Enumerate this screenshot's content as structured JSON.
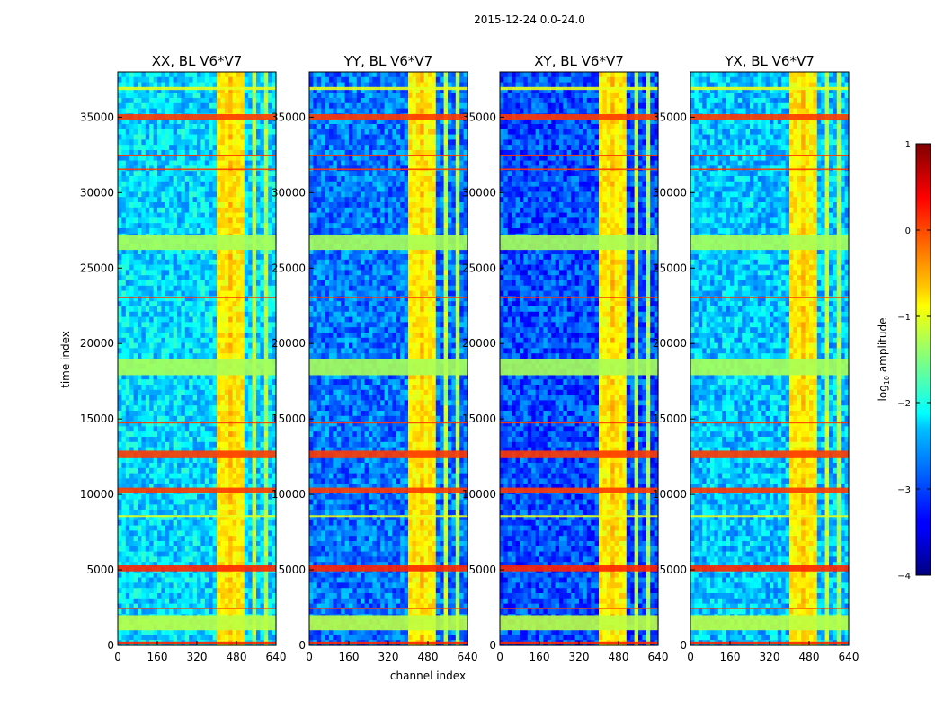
{
  "figure": {
    "suptitle": "2015-12-24 0.0-24.0",
    "xlabel": "channel index",
    "ylabel": "time index"
  },
  "colorbar": {
    "label_main": "log",
    "label_sub": "10",
    "label_tail": " amplitude",
    "range": [
      -4,
      1
    ],
    "ticks": [
      1,
      0,
      -1,
      -2,
      -3,
      -4
    ],
    "tick_labels": [
      "1",
      "0",
      "−1",
      "−2",
      "−3",
      "−4"
    ],
    "colormap": "jet"
  },
  "chart_data": {
    "type": "heatmap",
    "xlim": [
      0,
      640
    ],
    "ylim": [
      0,
      38000
    ],
    "xticks": [
      0,
      160,
      320,
      480,
      640
    ],
    "yticks": [
      0,
      5000,
      10000,
      15000,
      20000,
      25000,
      30000,
      35000
    ],
    "panels": [
      {
        "title": "XX, BL V6*V7",
        "polarization": "XX",
        "background_level": -2.3
      },
      {
        "title": "YY, BL V6*V7",
        "polarization": "YY",
        "background_level": -2.8
      },
      {
        "title": "XY, BL V6*V7",
        "polarization": "XY",
        "background_level": -3.0
      },
      {
        "title": "YX, BL V6*V7",
        "polarization": "YX",
        "background_level": -2.4
      }
    ],
    "bright_channel_bands": [
      {
        "from": 405,
        "to": 440,
        "level": -0.8
      },
      {
        "from": 445,
        "to": 465,
        "level": -0.6
      },
      {
        "from": 470,
        "to": 505,
        "level": -0.8
      },
      {
        "from": 540,
        "to": 560,
        "level": -1.2
      },
      {
        "from": 590,
        "to": 600,
        "level": -1.3
      }
    ],
    "flagged_time_rows": [
      {
        "from": 100,
        "to": 250,
        "level": 0.2
      },
      {
        "from": 1000,
        "to": 2000,
        "level": -1.2
      },
      {
        "from": 2400,
        "to": 2480,
        "level": 0.1
      },
      {
        "from": 4900,
        "to": 5300,
        "level": 0.2
      },
      {
        "from": 8500,
        "to": 8620,
        "level": -1.0
      },
      {
        "from": 10100,
        "to": 10450,
        "level": 0.1
      },
      {
        "from": 12400,
        "to": 12900,
        "level": 0.1
      },
      {
        "from": 14700,
        "to": 14780,
        "level": 0.1
      },
      {
        "from": 17900,
        "to": 19000,
        "level": -1.3
      },
      {
        "from": 23000,
        "to": 23080,
        "level": 0.1
      },
      {
        "from": 26200,
        "to": 27200,
        "level": -1.3
      },
      {
        "from": 31500,
        "to": 31600,
        "level": 0.1
      },
      {
        "from": 32400,
        "to": 32500,
        "level": 0.1
      },
      {
        "from": 34800,
        "to": 35200,
        "level": 0.1
      },
      {
        "from": 36800,
        "to": 37000,
        "level": -1.0
      }
    ]
  }
}
